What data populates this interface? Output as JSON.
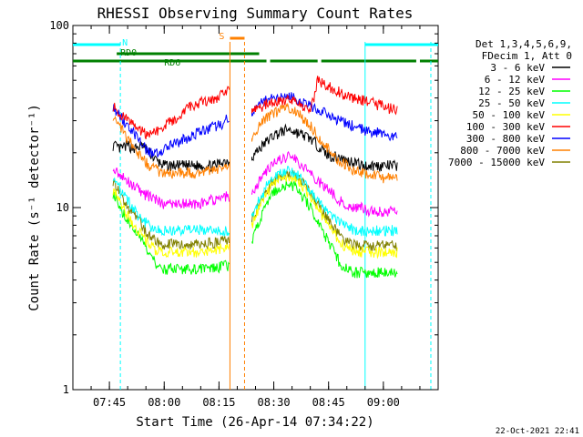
{
  "chart_data": {
    "type": "line",
    "title": "RHESSI Observing Summary Count Rates",
    "xlabel": "Start Time (26-Apr-14 07:34:22)",
    "ylabel": "Count Rate (s⁻¹ detector⁻¹)",
    "yscale": "log",
    "ylim": [
      1,
      100
    ],
    "xlim_min": [
      35,
      135
    ],
    "x_ticks_min": [
      45,
      60,
      75,
      90,
      105,
      120
    ],
    "x_tick_labels": [
      "07:45",
      "08:00",
      "08:15",
      "08:30",
      "08:45",
      "09:00"
    ],
    "y_ticks": [
      1,
      10,
      100
    ],
    "y_tick_labels": [
      "1",
      "10",
      "100"
    ],
    "legend_header": [
      "Det 1,3,4,5,6,9,",
      "FDecim 1, Att 0"
    ],
    "legend_position": "right",
    "footer_timestamp": "22-Oct-2021 22:41",
    "series": [
      {
        "name": "3 - 6 keV",
        "color": "#000000",
        "x": [
          46,
          48,
          50,
          52,
          54,
          56,
          58,
          60,
          62,
          64,
          66,
          68,
          70,
          72,
          74,
          76,
          78,
          84,
          86,
          88,
          90,
          92,
          94,
          96,
          98,
          100,
          102,
          104,
          106,
          108,
          110,
          112,
          114,
          116,
          118,
          120,
          122,
          124
        ],
        "y": [
          22,
          21,
          22,
          21,
          22,
          20,
          18,
          17,
          17,
          17,
          17,
          17,
          17,
          17,
          17,
          18,
          18,
          19,
          21,
          23,
          25,
          26,
          27,
          26,
          25,
          24,
          22,
          20,
          19,
          19,
          18,
          18,
          17,
          17,
          17,
          17,
          17,
          17
        ]
      },
      {
        "name": "6 - 12 keV",
        "color": "#ff00ff",
        "x": [
          46,
          48,
          50,
          52,
          54,
          56,
          58,
          60,
          62,
          64,
          66,
          68,
          70,
          72,
          74,
          76,
          78,
          84,
          86,
          88,
          90,
          92,
          94,
          96,
          98,
          100,
          102,
          104,
          106,
          108,
          110,
          112,
          114,
          116,
          118,
          120,
          122,
          124
        ],
        "y": [
          17,
          15,
          14,
          13,
          12,
          11.5,
          11,
          10.5,
          10.5,
          10.5,
          10.5,
          10.5,
          10.5,
          11,
          11,
          11.5,
          11.5,
          12,
          14,
          16,
          17.5,
          18.5,
          19,
          18.5,
          17,
          15.5,
          14,
          13,
          12,
          11,
          10.5,
          10,
          10,
          9.5,
          9.5,
          9.5,
          9.5,
          9.5
        ]
      },
      {
        "name": "12 - 25 keV",
        "color": "#00ff00",
        "x": [
          46,
          48,
          50,
          52,
          54,
          56,
          58,
          60,
          62,
          64,
          66,
          68,
          70,
          72,
          74,
          76,
          78,
          84,
          86,
          88,
          90,
          92,
          94,
          96,
          98,
          100,
          102,
          104,
          106,
          108,
          110,
          112,
          114,
          116,
          118,
          120,
          122,
          124
        ],
        "y": [
          12,
          10,
          8.5,
          7.5,
          6.5,
          5.5,
          4.8,
          4.6,
          4.6,
          4.6,
          4.6,
          4.6,
          4.6,
          4.6,
          4.6,
          4.8,
          4.8,
          6.5,
          8.5,
          10.5,
          12,
          13,
          13.5,
          13,
          11.5,
          10,
          8.5,
          7,
          6,
          5,
          4.6,
          4.4,
          4.4,
          4.4,
          4.4,
          4.4,
          4.4,
          4.4
        ]
      },
      {
        "name": "25 - 50 keV",
        "color": "#00ffff",
        "x": [
          46,
          48,
          50,
          52,
          54,
          56,
          58,
          60,
          62,
          64,
          66,
          68,
          70,
          72,
          74,
          76,
          78,
          84,
          86,
          88,
          90,
          92,
          94,
          96,
          98,
          100,
          102,
          104,
          106,
          108,
          110,
          112,
          114,
          116,
          118,
          120,
          122,
          124
        ],
        "y": [
          15,
          12.5,
          11,
          9.5,
          8.5,
          8,
          7.5,
          7.5,
          7.5,
          7.5,
          7.5,
          7.5,
          7.5,
          7.5,
          7.5,
          7.5,
          7.5,
          9,
          11,
          13,
          14.5,
          15.5,
          16,
          15.5,
          14,
          12.5,
          11,
          10,
          9,
          8.5,
          8,
          7.5,
          7.5,
          7.5,
          7.5,
          7.5,
          7.5,
          7.5
        ]
      },
      {
        "name": "50 - 100 keV",
        "color": "#ffff00",
        "x": [
          46,
          48,
          50,
          52,
          54,
          56,
          58,
          60,
          62,
          64,
          66,
          68,
          70,
          72,
          74,
          76,
          78,
          84,
          86,
          88,
          90,
          92,
          94,
          96,
          98,
          100,
          102,
          104,
          106,
          108,
          110,
          112,
          114,
          116,
          118,
          120,
          122,
          124
        ],
        "y": [
          12.5,
          10.5,
          9,
          8,
          7,
          6.3,
          5.8,
          5.7,
          5.7,
          5.7,
          5.7,
          5.7,
          5.7,
          5.8,
          5.8,
          6,
          6,
          8,
          10,
          12,
          13.5,
          14.5,
          15,
          14.5,
          13,
          11.5,
          10,
          8.5,
          7.5,
          6.5,
          6,
          5.8,
          5.7,
          5.7,
          5.7,
          5.7,
          5.7,
          5.7
        ]
      },
      {
        "name": "100 - 300 keV",
        "color": "#ff0000",
        "x": [
          46,
          48,
          50,
          52,
          54,
          56,
          58,
          60,
          62,
          64,
          66,
          68,
          70,
          72,
          74,
          76,
          78,
          84,
          86,
          88,
          90,
          92,
          94,
          96,
          98,
          100,
          102,
          104,
          106,
          108,
          110,
          112,
          114,
          116,
          118,
          120,
          122,
          124
        ],
        "y": [
          36,
          33,
          30,
          28,
          26,
          25,
          26,
          28,
          30,
          32,
          35,
          36,
          38,
          39,
          40,
          42,
          45,
          33,
          35,
          37,
          38,
          39,
          39,
          38,
          36,
          33,
          50,
          48,
          45,
          43,
          41,
          40,
          39,
          38,
          37,
          36,
          35,
          35
        ]
      },
      {
        "name": "300 - 800 keV",
        "color": "#0000ff",
        "x": [
          46,
          48,
          50,
          52,
          54,
          56,
          58,
          60,
          62,
          64,
          66,
          68,
          70,
          72,
          74,
          76,
          78,
          84,
          86,
          88,
          90,
          92,
          94,
          96,
          98,
          100,
          102,
          104,
          106,
          108,
          110,
          112,
          114,
          116,
          118,
          120,
          122,
          124
        ],
        "y": [
          36,
          32,
          28,
          25,
          22,
          20,
          20,
          21,
          22,
          23,
          24,
          25,
          26,
          27,
          28,
          29,
          32,
          34,
          37,
          39,
          40,
          41,
          41,
          40,
          38,
          36,
          35,
          33,
          31,
          30,
          29,
          28,
          27,
          26,
          26,
          25,
          25,
          24
        ]
      },
      {
        "name": "800 - 7000 keV",
        "color": "#ff8000",
        "x": [
          46,
          48,
          50,
          52,
          54,
          56,
          58,
          60,
          62,
          64,
          66,
          68,
          70,
          72,
          74,
          76,
          78,
          84,
          86,
          88,
          90,
          92,
          94,
          96,
          98,
          100,
          102,
          104,
          106,
          108,
          110,
          112,
          114,
          116,
          118,
          120,
          122,
          124
        ],
        "y": [
          32,
          28,
          24,
          21,
          18.5,
          17,
          16,
          15.5,
          15.5,
          15.5,
          15.5,
          15.5,
          15.5,
          16,
          16,
          16.5,
          17,
          24,
          28,
          31,
          33,
          34.5,
          35,
          34,
          31,
          28,
          25,
          22,
          20,
          18,
          17,
          16,
          15.5,
          15,
          15,
          14.5,
          14.5,
          14.5
        ]
      },
      {
        "name": "7000 - 15000 keV",
        "color": "#808000",
        "x": [
          46,
          48,
          50,
          52,
          54,
          56,
          58,
          60,
          62,
          64,
          66,
          68,
          70,
          72,
          74,
          76,
          78,
          84,
          86,
          88,
          90,
          92,
          94,
          96,
          98,
          100,
          102,
          104,
          106,
          108,
          110,
          112,
          114,
          116,
          118,
          120,
          122,
          124
        ],
        "y": [
          14,
          12,
          10,
          9,
          8,
          7,
          6.5,
          6.3,
          6.3,
          6.3,
          6.3,
          6.3,
          6.3,
          6.4,
          6.4,
          6.6,
          6.6,
          8.5,
          10.5,
          12.5,
          14,
          15,
          15.5,
          15,
          13.5,
          12,
          10.5,
          9,
          8,
          7,
          6.5,
          6.3,
          6.2,
          6.2,
          6.2,
          6.2,
          6.2,
          6.2
        ]
      }
    ],
    "flags": [
      {
        "label": "N",
        "color": "#00ffff",
        "segments": [
          [
            35,
            48
          ],
          [
            115,
            135
          ]
        ]
      },
      {
        "label": "RD0",
        "color": "#008000",
        "segments": [
          [
            47,
            86
          ]
        ]
      },
      {
        "label": "RD6",
        "color": "#008000",
        "segments": [
          [
            35,
            88
          ],
          [
            89,
            102
          ],
          [
            103,
            129
          ],
          [
            130,
            135
          ]
        ]
      },
      {
        "label": "S",
        "color": "#ff8000",
        "segments": [
          [
            78,
            82
          ]
        ]
      }
    ]
  }
}
